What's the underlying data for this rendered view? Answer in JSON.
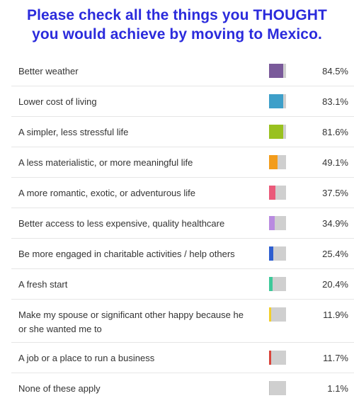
{
  "chart_data": {
    "type": "bar",
    "title": "Please check all the things you THOUGHT you would achieve by moving to Mexico.",
    "title_lines": [
      "Please check all the things you THOUGHT",
      "you would achieve by moving to Mexico."
    ],
    "xlabel": "",
    "ylabel": "",
    "ylim": [
      0,
      100
    ],
    "grid": false,
    "categories": [
      "Better weather",
      "Lower cost of living",
      "A simpler, less stressful life",
      "A less materialistic, or more meaningful life",
      "A more romantic, exotic, or adventurous life",
      "Better access to less expensive, quality healthcare",
      "Be more engaged in charitable activities / help others",
      "A fresh start",
      "Make my spouse or significant other happy because he or she wanted me to",
      "A job or a place to run a business",
      "None of these apply"
    ],
    "values": [
      84.5,
      83.1,
      81.6,
      49.1,
      37.5,
      34.9,
      25.4,
      20.4,
      11.9,
      11.7,
      1.1
    ],
    "value_labels": [
      "84.5%",
      "83.1%",
      "81.6%",
      "49.1%",
      "37.5%",
      "34.9%",
      "25.4%",
      "20.4%",
      "11.9%",
      "11.7%",
      "1.1%"
    ],
    "colors": [
      "#7a5a9a",
      "#3d9fc9",
      "#99c11f",
      "#f29c1c",
      "#ea5a7a",
      "#b98be0",
      "#2f5fd0",
      "#3ec99a",
      "#f2cf2c",
      "#d9453c",
      "#c0c0c0"
    ],
    "track_color": "#cfcfcf"
  }
}
